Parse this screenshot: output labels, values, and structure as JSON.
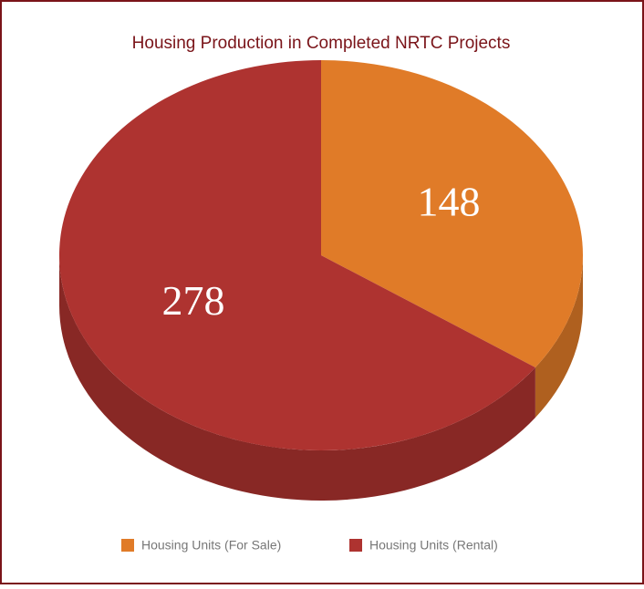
{
  "chart_data": {
    "type": "pie",
    "title": "Housing Production in Completed NRTC Projects",
    "categories": [
      "Housing Units (For Sale)",
      "Housing Units (Rental)"
    ],
    "values": [
      148,
      278
    ],
    "colors": [
      "#e07b28",
      "#ae3330"
    ],
    "legend": "bottom"
  }
}
